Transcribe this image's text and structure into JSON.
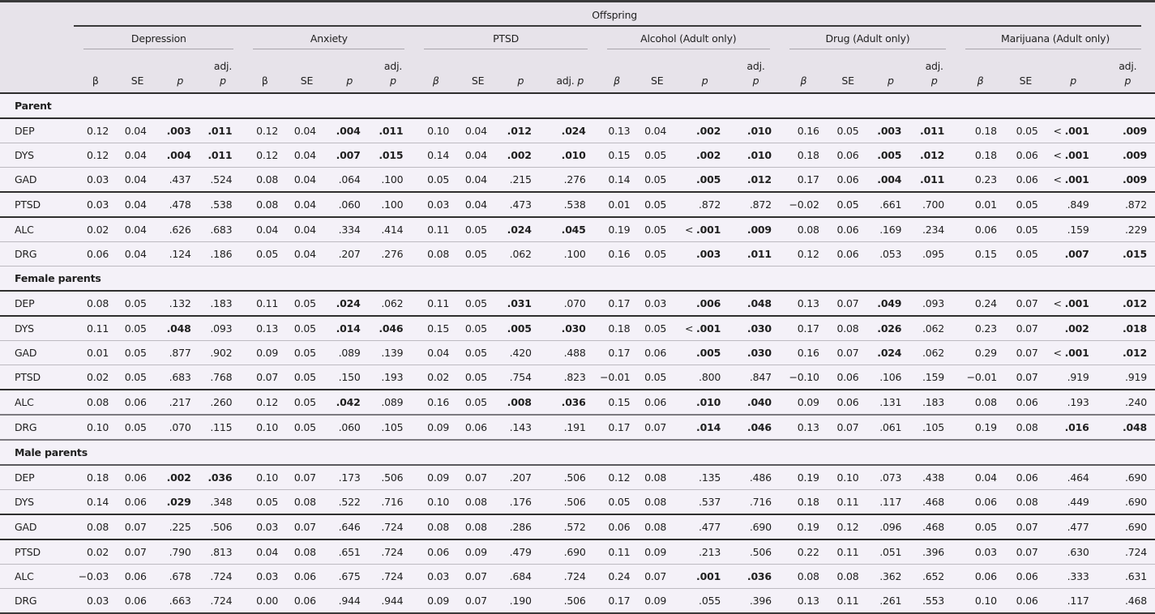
{
  "table": {
    "spanner": "Offspring",
    "groups": [
      {
        "label": "Depression",
        "beta_italic": false,
        "adj_one_line": false
      },
      {
        "label": "Anxiety",
        "beta_italic": false,
        "adj_one_line": false
      },
      {
        "label": "PTSD",
        "beta_italic": true,
        "adj_one_line": true
      },
      {
        "label": "Alcohol (Adult only)",
        "beta_italic": true,
        "adj_one_line": false
      },
      {
        "label": "Drug (Adult only)",
        "beta_italic": true,
        "adj_one_line": false
      },
      {
        "label": "Marijuana (Adult only)",
        "beta_italic": true,
        "adj_one_line": false
      }
    ],
    "subheaders": {
      "beta": "β",
      "se": "SE",
      "p": "p",
      "adj": "adj.",
      "adj_p": "p",
      "adj_p_one_line": "adj. p"
    },
    "sections": [
      {
        "label": "Parent",
        "rows": [
          {
            "name": "DEP",
            "cells": [
              "0.12",
              "0.04",
              "*.003",
              "*.011",
              "0.12",
              "0.04",
              "*.004",
              "*.011",
              "0.10",
              "0.04",
              "*.012",
              "*.024",
              "0.13",
              "0.04",
              "*.002",
              "*.010",
              "0.16",
              "0.05",
              "*.003",
              "*.011",
              "0.18",
              "0.05",
              "*< .001",
              "*.009"
            ]
          },
          {
            "name": "DYS",
            "cells": [
              "0.12",
              "0.04",
              "*.004",
              "*.011",
              "0.12",
              "0.04",
              "*.007",
              "*.015",
              "0.14",
              "0.04",
              "*.002",
              "*.010",
              "0.15",
              "0.05",
              "*.002",
              "*.010",
              "0.18",
              "0.06",
              "*.005",
              "*.012",
              "0.18",
              "0.06",
              "*< .001",
              "*.009"
            ]
          },
          {
            "name": "GAD",
            "cells": [
              "0.03",
              "0.04",
              ".437",
              ".524",
              "0.08",
              "0.04",
              ".064",
              ".100",
              "0.05",
              "0.04",
              ".215",
              ".276",
              "0.14",
              "0.05",
              "*.005",
              "*.012",
              "0.17",
              "0.06",
              "*.004",
              "*.011",
              "0.23",
              "0.06",
              "*< .001",
              "*.009"
            ]
          },
          {
            "name": "PTSD",
            "cells": [
              "0.03",
              "0.04",
              ".478",
              ".538",
              "0.08",
              "0.04",
              ".060",
              ".100",
              "0.03",
              "0.04",
              ".473",
              ".538",
              "0.01",
              "0.05",
              ".872",
              ".872",
              "−0.02",
              "0.05",
              ".661",
              ".700",
              "0.01",
              "0.05",
              ".849",
              ".872"
            ]
          },
          {
            "name": "ALC",
            "cells": [
              "0.02",
              "0.04",
              ".626",
              ".683",
              "0.04",
              "0.04",
              ".334",
              ".414",
              "0.11",
              "0.05",
              "*.024",
              "*.045",
              "0.19",
              "0.05",
              "*< .001",
              "*.009",
              "0.08",
              "0.06",
              ".169",
              ".234",
              "0.06",
              "0.05",
              ".159",
              ".229"
            ]
          },
          {
            "name": "DRG",
            "cells": [
              "0.06",
              "0.04",
              ".124",
              ".186",
              "0.05",
              "0.04",
              ".207",
              ".276",
              "0.08",
              "0.05",
              ".062",
              ".100",
              "0.16",
              "0.05",
              "*.003",
              "*.011",
              "0.12",
              "0.06",
              ".053",
              ".095",
              "0.15",
              "0.05",
              "*.007",
              "*.015"
            ]
          }
        ]
      },
      {
        "label": "Female parents",
        "rows": [
          {
            "name": "DEP",
            "cells": [
              "0.08",
              "0.05",
              ".132",
              ".183",
              "0.11",
              "0.05",
              "*.024",
              ".062",
              "0.11",
              "0.05",
              "*.031",
              ".070",
              "0.17",
              "0.03",
              "*.006",
              "*.048",
              "0.13",
              "0.07",
              "*.049",
              ".093",
              "0.24",
              "0.07",
              "*< .001",
              "*.012"
            ]
          },
          {
            "name": "DYS",
            "cells": [
              "0.11",
              "0.05",
              "*.048",
              ".093",
              "0.13",
              "0.05",
              "*.014",
              "*.046",
              "0.15",
              "0.05",
              "*.005",
              "*.030",
              "0.18",
              "0.05",
              "*< .001",
              "*.030",
              "0.17",
              "0.08",
              "*.026",
              ".062",
              "0.23",
              "0.07",
              "*.002",
              "*.018"
            ]
          },
          {
            "name": "GAD",
            "cells": [
              "0.01",
              "0.05",
              ".877",
              ".902",
              "0.09",
              "0.05",
              ".089",
              ".139",
              "0.04",
              "0.05",
              ".420",
              ".488",
              "0.17",
              "0.06",
              "*.005",
              "*.030",
              "0.16",
              "0.07",
              "*.024",
              ".062",
              "0.29",
              "0.07",
              "*< .001",
              "*.012"
            ]
          },
          {
            "name": "PTSD",
            "cells": [
              "0.02",
              "0.05",
              ".683",
              ".768",
              "0.07",
              "0.05",
              ".150",
              ".193",
              "0.02",
              "0.05",
              ".754",
              ".823",
              "−0.01",
              "0.05",
              ".800",
              ".847",
              "−0.10",
              "0.06",
              ".106",
              ".159",
              "−0.01",
              "0.07",
              ".919",
              ".919"
            ]
          },
          {
            "name": "ALC",
            "cells": [
              "0.08",
              "0.06",
              ".217",
              ".260",
              "0.12",
              "0.05",
              "*.042",
              ".089",
              "0.16",
              "0.05",
              "*.008",
              "*.036",
              "0.15",
              "0.06",
              "*.010",
              "*.040",
              "0.09",
              "0.06",
              ".131",
              ".183",
              "0.08",
              "0.06",
              ".193",
              ".240"
            ]
          },
          {
            "name": "DRG",
            "cells": [
              "0.10",
              "0.05",
              ".070",
              ".115",
              "0.10",
              "0.05",
              ".060",
              ".105",
              "0.09",
              "0.06",
              ".143",
              ".191",
              "0.17",
              "0.07",
              "*.014",
              "*.046",
              "0.13",
              "0.07",
              ".061",
              ".105",
              "0.19",
              "0.08",
              "*.016",
              "*.048"
            ]
          }
        ]
      },
      {
        "label": "Male parents",
        "rows": [
          {
            "name": "DEP",
            "cells": [
              "0.18",
              "0.06",
              "*.002",
              "*.036",
              "0.10",
              "0.07",
              ".173",
              ".506",
              "0.09",
              "0.07",
              ".207",
              ".506",
              "0.12",
              "0.08",
              ".135",
              ".486",
              "0.19",
              "0.10",
              ".073",
              ".438",
              "0.04",
              "0.06",
              ".464",
              ".690"
            ]
          },
          {
            "name": "DYS",
            "cells": [
              "0.14",
              "0.06",
              "*.029",
              ".348",
              "0.05",
              "0.08",
              ".522",
              ".716",
              "0.10",
              "0.08",
              ".176",
              ".506",
              "0.05",
              "0.08",
              ".537",
              ".716",
              "0.18",
              "0.11",
              ".117",
              ".468",
              "0.06",
              "0.08",
              ".449",
              ".690"
            ]
          },
          {
            "name": "GAD",
            "cells": [
              "0.08",
              "0.07",
              ".225",
              ".506",
              "0.03",
              "0.07",
              ".646",
              ".724",
              "0.08",
              "0.08",
              ".286",
              ".572",
              "0.06",
              "0.08",
              ".477",
              ".690",
              "0.19",
              "0.12",
              ".096",
              ".468",
              "0.05",
              "0.07",
              ".477",
              ".690"
            ]
          },
          {
            "name": "PTSD",
            "cells": [
              "0.02",
              "0.07",
              ".790",
              ".813",
              "0.04",
              "0.08",
              ".651",
              ".724",
              "0.06",
              "0.09",
              ".479",
              ".690",
              "0.11",
              "0.09",
              ".213",
              ".506",
              "0.22",
              "0.11",
              ".051",
              ".396",
              "0.03",
              "0.07",
              ".630",
              ".724"
            ]
          },
          {
            "name": "ALC",
            "cells": [
              "−0.03",
              "0.06",
              ".678",
              ".724",
              "0.03",
              "0.06",
              ".675",
              ".724",
              "0.03",
              "0.07",
              ".684",
              ".724",
              "0.24",
              "0.07",
              "*.001",
              "*.036",
              "0.08",
              "0.08",
              ".362",
              ".652",
              "0.06",
              "0.06",
              ".333",
              ".631"
            ]
          },
          {
            "name": "DRG",
            "cells": [
              "0.03",
              "0.06",
              ".663",
              ".724",
              "0.00",
              "0.06",
              ".944",
              ".944",
              "0.09",
              "0.07",
              ".190",
              ".506",
              "0.17",
              "0.09",
              ".055",
              ".396",
              "0.13",
              "0.11",
              ".261",
              ".553",
              "0.10",
              "0.06",
              ".117",
              ".468"
            ]
          }
        ]
      }
    ],
    "bold_marker_note": "cells prefixed with * are rendered bold (significant)"
  }
}
